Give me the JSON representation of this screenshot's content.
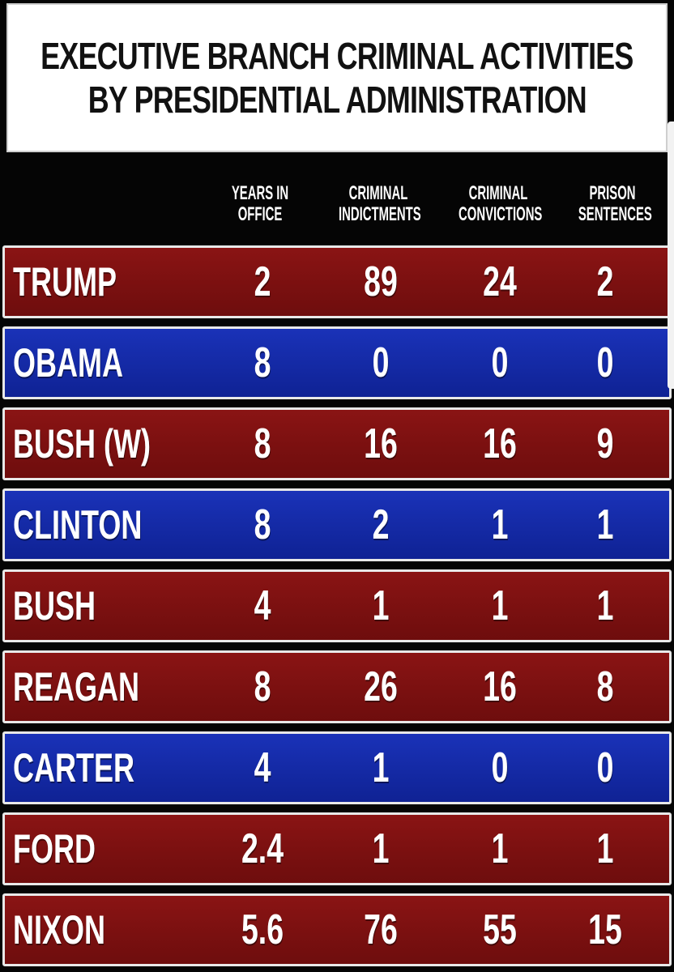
{
  "title_lines": [
    "EXECUTIVE BRANCH CRIMINAL ACTIVITIES",
    "BY PRESIDENTIAL ADMINISTRATION"
  ],
  "colors": {
    "red_row": "#7c1010",
    "blue_row": "#1529a6",
    "header_bg": "#050505",
    "title_bg": "#ffffff"
  },
  "chart_data": {
    "type": "table",
    "title": "EXECUTIVE BRANCH CRIMINAL ACTIVITIES BY PRESIDENTIAL ADMINISTRATION",
    "columns": [
      {
        "key": "years",
        "label": [
          "YEARS IN",
          "OFFICE"
        ]
      },
      {
        "key": "indictments",
        "label": [
          "CRIMINAL",
          "INDICTMENTS"
        ]
      },
      {
        "key": "convictions",
        "label": [
          "CRIMINAL",
          "CONVICTIONS"
        ]
      },
      {
        "key": "sentences",
        "label": [
          "PRISON",
          "SENTENCES"
        ]
      }
    ],
    "rows": [
      {
        "name": "TRUMP",
        "color": "red",
        "years": "2",
        "indictments": "89",
        "convictions": "24",
        "sentences": "2"
      },
      {
        "name": "OBAMA",
        "color": "blue",
        "years": "8",
        "indictments": "0",
        "convictions": "0",
        "sentences": "0"
      },
      {
        "name": "BUSH (W)",
        "color": "red",
        "years": "8",
        "indictments": "16",
        "convictions": "16",
        "sentences": "9"
      },
      {
        "name": "CLINTON",
        "color": "blue",
        "years": "8",
        "indictments": "2",
        "convictions": "1",
        "sentences": "1"
      },
      {
        "name": "BUSH",
        "color": "red",
        "years": "4",
        "indictments": "1",
        "convictions": "1",
        "sentences": "1"
      },
      {
        "name": "REAGAN",
        "color": "red",
        "years": "8",
        "indictments": "26",
        "convictions": "16",
        "sentences": "8"
      },
      {
        "name": "CARTER",
        "color": "blue",
        "years": "4",
        "indictments": "1",
        "convictions": "0",
        "sentences": "0"
      },
      {
        "name": "FORD",
        "color": "red",
        "years": "2.4",
        "indictments": "1",
        "convictions": "1",
        "sentences": "1"
      },
      {
        "name": "NIXON",
        "color": "red",
        "years": "5.6",
        "indictments": "76",
        "convictions": "55",
        "sentences": "15"
      }
    ]
  }
}
